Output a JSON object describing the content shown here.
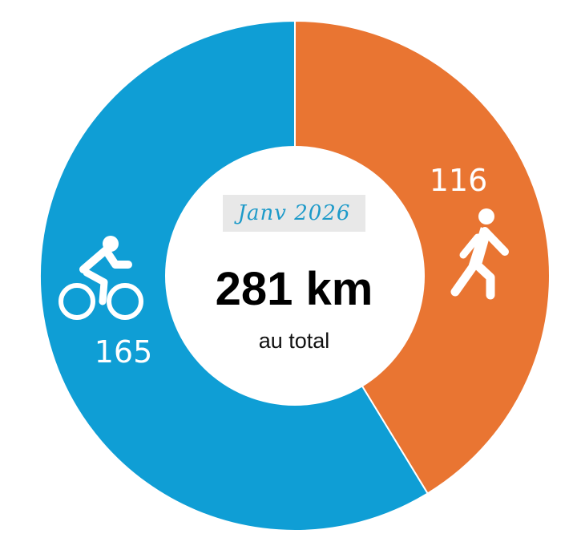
{
  "chart_data": {
    "type": "pie",
    "categories": [
      "marche",
      "vélo"
    ],
    "values": [
      116,
      165
    ],
    "colors": [
      "#e97532",
      "#0f9ed5"
    ],
    "icons": [
      "walking-person-icon",
      "cyclist-icon"
    ],
    "total": 281
  },
  "center": {
    "period": "Janv 2026",
    "total_label": "281 km",
    "caption": "au total",
    "period_color": "#1d9ac9",
    "period_bg": "#e8e8e8"
  }
}
